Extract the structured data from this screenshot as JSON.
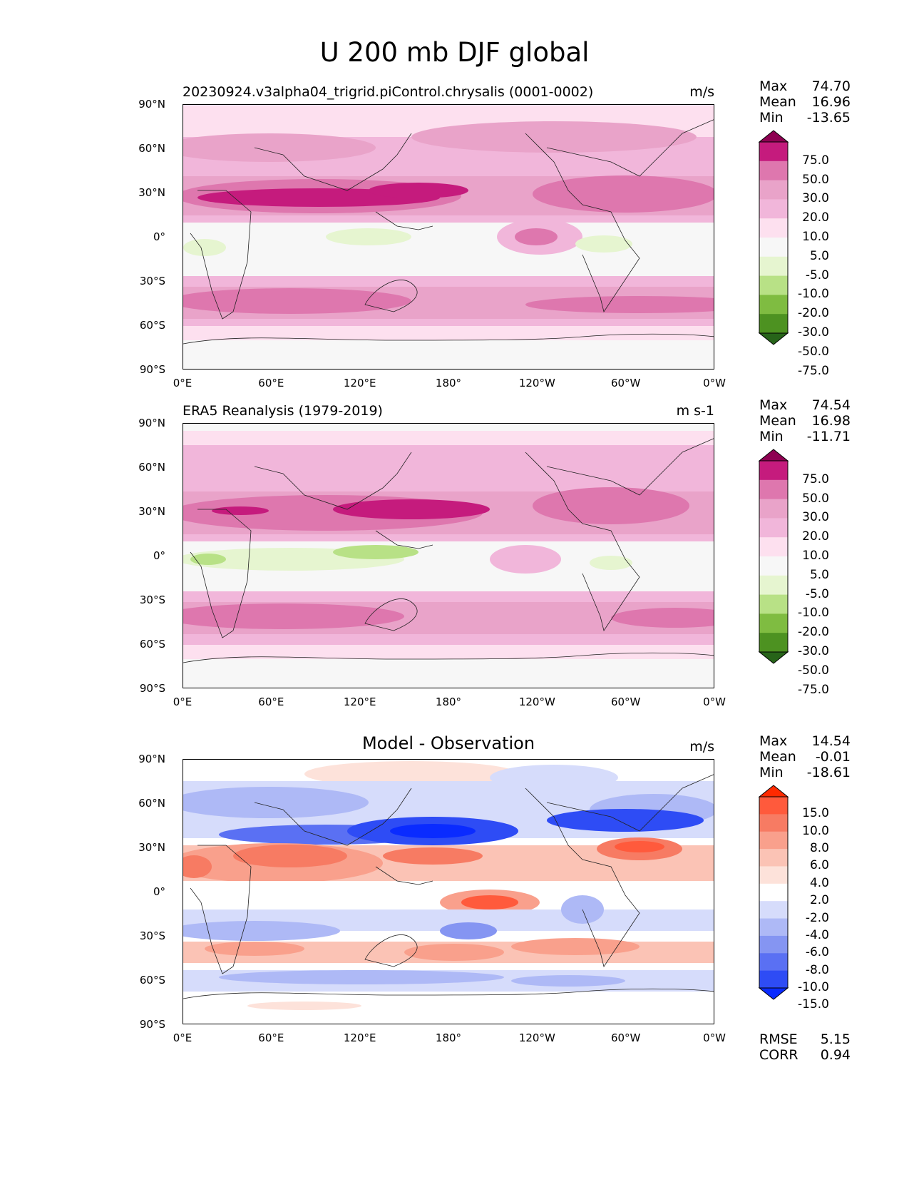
{
  "figure": {
    "title": "U 200 mb DJF global"
  },
  "axes": {
    "y_ticks": [
      "90°N",
      "60°N",
      "30°N",
      "0°",
      "30°S",
      "60°S",
      "90°S"
    ],
    "x_ticks": [
      "0°E",
      "60°E",
      "120°E",
      "180°",
      "120°W",
      "60°W",
      "0°W"
    ]
  },
  "panels": [
    {
      "title": "20230924.v3alpha04_trigrid.piControl.chrysalis (0001-0002)",
      "units": "m/s",
      "stats": {
        "max_label": "Max",
        "max": "74.70",
        "mean_label": "Mean",
        "mean": "16.96",
        "min_label": "Min",
        "min": "-13.65"
      },
      "colorbar": {
        "labels": [
          "75.0",
          "50.0",
          "30.0",
          "20.0",
          "10.0",
          "5.0",
          "-5.0",
          "-10.0",
          "-20.0",
          "-30.0",
          "-50.0",
          "-75.0"
        ],
        "colors": [
          "#8e0152",
          "#c51b7d",
          "#de77ae",
          "#e9a3c9",
          "#f1b6da",
          "#fde0ef",
          "#f7f7f7",
          "#e6f5d0",
          "#b8e186",
          "#7fbc41",
          "#4d9221",
          "#276419"
        ]
      }
    },
    {
      "title": "ERA5 Reanalysis (1979-2019)",
      "units": "m s-1",
      "stats": {
        "max_label": "Max",
        "max": "74.54",
        "mean_label": "Mean",
        "mean": "16.98",
        "min_label": "Min",
        "min": "-11.71"
      },
      "colorbar": {
        "labels": [
          "75.0",
          "50.0",
          "30.0",
          "20.0",
          "10.0",
          "5.0",
          "-5.0",
          "-10.0",
          "-20.0",
          "-30.0",
          "-50.0",
          "-75.0"
        ],
        "colors": [
          "#8e0152",
          "#c51b7d",
          "#de77ae",
          "#e9a3c9",
          "#f1b6da",
          "#fde0ef",
          "#f7f7f7",
          "#e6f5d0",
          "#b8e186",
          "#7fbc41",
          "#4d9221",
          "#276419"
        ]
      }
    },
    {
      "title": "Model - Observation",
      "units": "m/s",
      "stats": {
        "max_label": "Max",
        "max": "14.54",
        "mean_label": "Mean",
        "mean": "-0.01",
        "min_label": "Min",
        "min": "-18.61"
      },
      "colorbar": {
        "labels": [
          "15.0",
          "10.0",
          "8.0",
          "6.0",
          "4.0",
          "2.0",
          "-2.0",
          "-4.0",
          "-6.0",
          "-8.0",
          "-10.0",
          "-15.0"
        ],
        "colors": [
          "#ff2a00",
          "#ff5a3c",
          "#f77b63",
          "#f9a08c",
          "#fbc3b5",
          "#fde2da",
          "#ffffff",
          "#d6dcfb",
          "#aeb9f6",
          "#8595f2",
          "#5a70f3",
          "#2e4cf5",
          "#0a2bff"
        ]
      },
      "metrics": {
        "rmse_label": "RMSE",
        "rmse": "5.15",
        "corr_label": "CORR",
        "corr": "0.94"
      }
    }
  ]
}
